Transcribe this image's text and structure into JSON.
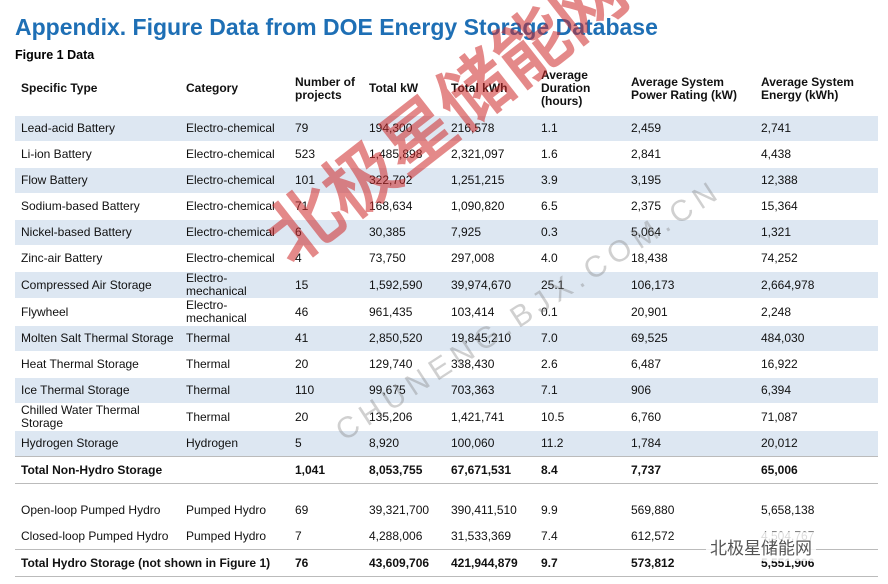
{
  "title": "Appendix. Figure Data from DOE Energy Storage Database",
  "subtitle": "Figure 1 Data",
  "table": {
    "header": [
      "Specific Type",
      "Category",
      "Number of projects",
      "Total kW",
      "Total kWh",
      "Average Duration (hours)",
      "Average System Power Rating (kW)",
      "Average System Energy (kWh)"
    ],
    "rows": [
      [
        "Lead-acid Battery",
        "Electro-chemical",
        "79",
        "194,300",
        "216,578",
        "1.1",
        "2,459",
        "2,741"
      ],
      [
        "Li-ion Battery",
        "Electro-chemical",
        "523",
        "1,485,898",
        "2,321,097",
        "1.6",
        "2,841",
        "4,438"
      ],
      [
        "Flow Battery",
        "Electro-chemical",
        "101",
        "322,702",
        "1,251,215",
        "3.9",
        "3,195",
        "12,388"
      ],
      [
        "Sodium-based Battery",
        "Electro-chemical",
        "71",
        "168,634",
        "1,090,820",
        "6.5",
        "2,375",
        "15,364"
      ],
      [
        "Nickel-based Battery",
        "Electro-chemical",
        "6",
        "30,385",
        "7,925",
        "0.3",
        "5,064",
        "1,321"
      ],
      [
        "Zinc-air Battery",
        "Electro-chemical",
        "4",
        "73,750",
        "297,008",
        "4.0",
        "18,438",
        "74,252"
      ],
      [
        "Compressed Air Storage",
        "Electro-mechanical",
        "15",
        "1,592,590",
        "39,974,670",
        "25.1",
        "106,173",
        "2,664,978"
      ],
      [
        "Flywheel",
        "Electro-mechanical",
        "46",
        "961,435",
        "103,414",
        "0.1",
        "20,901",
        "2,248"
      ],
      [
        "Molten Salt Thermal Storage",
        "Thermal",
        "41",
        "2,850,520",
        "19,845,210",
        "7.0",
        "69,525",
        "484,030"
      ],
      [
        "Heat Thermal Storage",
        "Thermal",
        "20",
        "129,740",
        "338,430",
        "2.6",
        "6,487",
        "16,922"
      ],
      [
        "Ice Thermal Storage",
        "Thermal",
        "110",
        "99,675",
        "703,363",
        "7.1",
        "906",
        "6,394"
      ],
      [
        "Chilled Water Thermal Storage",
        "Thermal",
        "20",
        "135,206",
        "1,421,741",
        "10.5",
        "6,760",
        "71,087"
      ],
      [
        "Hydrogen Storage",
        "Hydrogen",
        "5",
        "8,920",
        "100,060",
        "11.2",
        "1,784",
        "20,012"
      ]
    ],
    "non_hydro_total": [
      "Total Non-Hydro Storage",
      "1,041",
      "8,053,755",
      "67,671,531",
      "8.4",
      "7,737",
      "65,006"
    ],
    "hydro_rows": [
      [
        "Open-loop Pumped Hydro",
        "Pumped Hydro",
        "69",
        "39,321,700",
        "390,411,510",
        "9.9",
        "569,880",
        "5,658,138"
      ],
      [
        "Closed-loop Pumped Hydro",
        "Pumped Hydro",
        "7",
        "4,288,006",
        "31,533,369",
        "7.4",
        "612,572",
        "4,504,767"
      ]
    ],
    "hydro_total": [
      "Total Hydro Storage (not shown in Figure 1)",
      "76",
      "43,609,706",
      "421,944,879",
      "9.7",
      "573,812",
      "5,551,906"
    ]
  },
  "watermark": {
    "logo": "北极星储能网",
    "url": "CHUNENG.BJX.COM.CN",
    "badge": "北极星储能网"
  }
}
